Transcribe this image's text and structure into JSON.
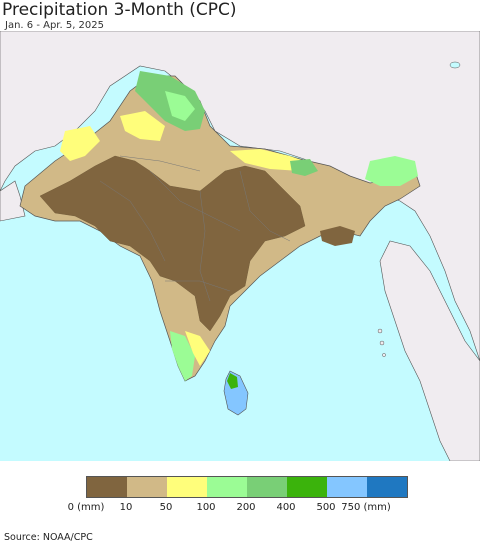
{
  "header": {
    "title": "Precipitation 3-Month (CPC)",
    "subtitle": "Jan. 6 - Apr. 5, 2025"
  },
  "map": {
    "colors": {
      "ocean": "#c4fbff",
      "land_outside": "#f0ecf0",
      "border": "#555555"
    }
  },
  "legend": {
    "swatches": [
      {
        "color": "#80653f"
      },
      {
        "color": "#d1b987"
      },
      {
        "color": "#fffe7b"
      },
      {
        "color": "#9bfc95"
      },
      {
        "color": "#79cf76"
      },
      {
        "color": "#3bb30c"
      },
      {
        "color": "#84c6ff"
      },
      {
        "color": "#1f78c1"
      }
    ],
    "ticks": [
      "0 (mm)",
      "10",
      "50",
      "100",
      "200",
      "400",
      "500",
      "750 (mm)"
    ]
  },
  "footer": {
    "source": "Source: NOAA/CPC"
  }
}
